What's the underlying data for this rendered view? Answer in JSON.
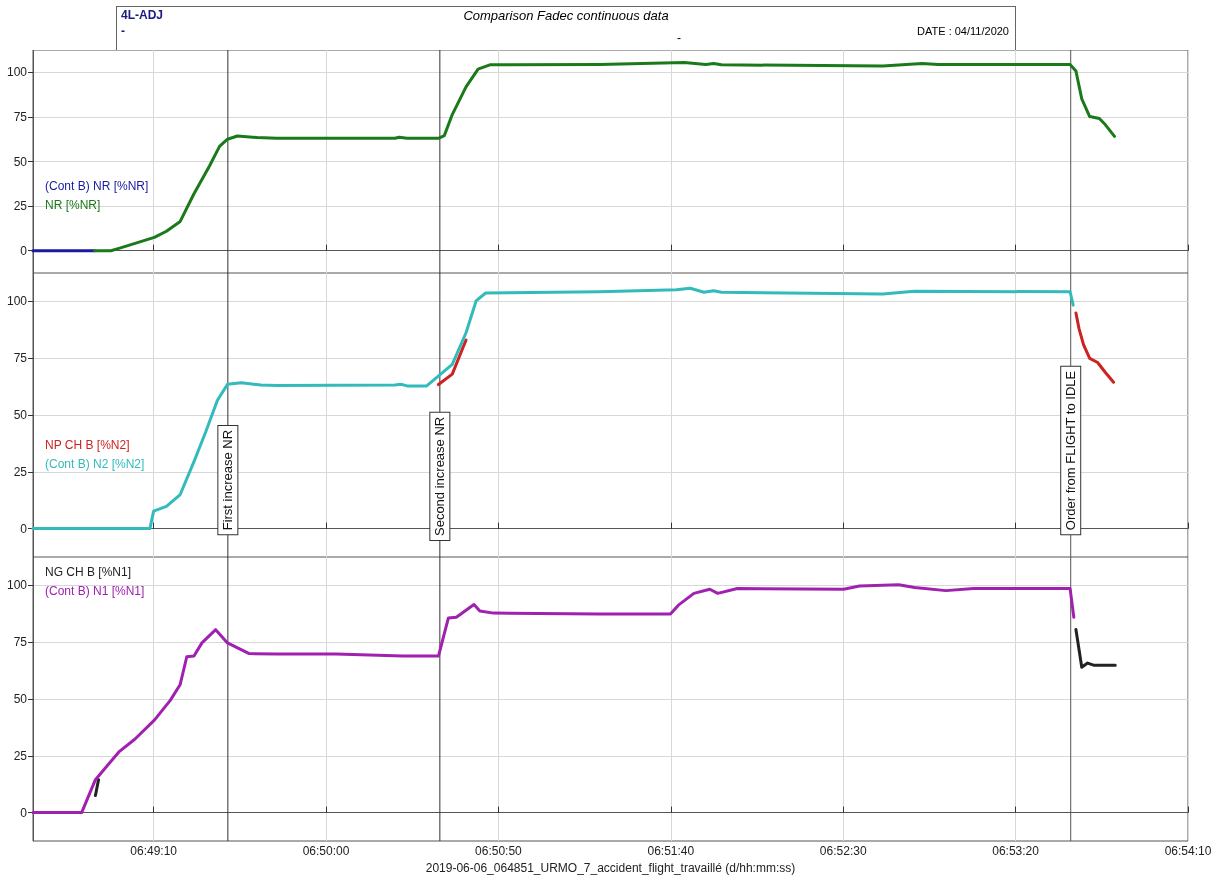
{
  "chart_data": [
    {
      "type": "line",
      "title": "Comparison Fadec continuous data",
      "annotations": [
        "4L-ADJ",
        "-",
        "-",
        "DATE : 04/11/2020"
      ],
      "xlim": [
        6.80972,
        6.90278
      ],
      "xticks": [
        {
          "value": 6.81944,
          "label": null
        },
        {
          "value": 6.83333,
          "label": null
        },
        {
          "value": 6.84722,
          "label": null
        },
        {
          "value": 6.86111,
          "label": null
        },
        {
          "value": 6.875,
          "label": null
        },
        {
          "value": 6.88889,
          "label": null
        },
        {
          "value": 6.90278,
          "label": null
        }
      ],
      "ylim": [
        -12.5,
        112.5
      ],
      "yticks": [
        0,
        25,
        50,
        75,
        100
      ],
      "grid": true,
      "legend": "left",
      "marker": "none",
      "line_style": "solid",
      "tick_labels": "y",
      "ref_lines": [
        {
          "axis": "x",
          "value": 6.82542,
          "color": "#333333"
        },
        {
          "axis": "x",
          "value": 6.8425,
          "color": "#333333"
        },
        {
          "axis": "x",
          "value": 6.89333,
          "color": "#555555"
        }
      ],
      "series": [
        {
          "name": "(Cont B) NR [%NR]",
          "color": "#1a1aa0",
          "x": [
            6.80972,
            6.81467
          ],
          "values": [
            0,
            0
          ]
        },
        {
          "name": "NR [%NR]",
          "color": "#1a7a1a",
          "x": [
            6.81467,
            6.816,
            6.81664,
            6.8195,
            6.82047,
            6.82158,
            6.82269,
            6.82394,
            6.82475,
            6.82539,
            6.82619,
            6.82778,
            6.82936,
            6.83889,
            6.83922,
            6.83986,
            6.84239,
            6.84286,
            6.8435,
            6.84461,
            6.84558,
            6.84653,
            6.85536,
            6.86219,
            6.86394,
            6.86456,
            6.86519,
            6.87819,
            6.88136,
            6.88264,
            6.89328,
            6.89375,
            6.89422,
            6.89486,
            6.89564,
            6.89611,
            6.89686
          ],
          "values": [
            0,
            0,
            1.3,
            7.5,
            10.9,
            16.4,
            31.9,
            47.5,
            58.5,
            62.5,
            64.3,
            63.4,
            63,
            63,
            63.6,
            63,
            63,
            64.5,
            76.3,
            91.8,
            101.8,
            104.2,
            104.4,
            105.5,
            104.4,
            104.9,
            104.2,
            103.5,
            104.9,
            104.4,
            104.4,
            100.7,
            85.1,
            75.2,
            74.1,
            70.7,
            64.1
          ]
        }
      ]
    },
    {
      "type": "line",
      "xlim": [
        6.80972,
        6.90278
      ],
      "xticks": [
        {
          "value": 6.81944,
          "label": null
        },
        {
          "value": 6.83333,
          "label": null
        },
        {
          "value": 6.84722,
          "label": null
        },
        {
          "value": 6.86111,
          "label": null
        },
        {
          "value": 6.875,
          "label": null
        },
        {
          "value": 6.88889,
          "label": null
        },
        {
          "value": 6.90278,
          "label": null
        }
      ],
      "ylim": [
        -12.5,
        112.5
      ],
      "yticks": [
        0,
        25,
        50,
        75,
        100
      ],
      "grid": true,
      "legend": "left",
      "marker": "none",
      "line_style": "solid",
      "tick_labels": "y",
      "ref_lines": [
        {
          "axis": "x",
          "value": 6.82542,
          "label": "First increase NR",
          "color": "#333333"
        },
        {
          "axis": "x",
          "value": 6.8425,
          "label": "Second increase NR",
          "color": "#333333"
        },
        {
          "axis": "x",
          "value": 6.89333,
          "label": "Order from FLIGHT to IDLE",
          "color": "#555555"
        }
      ],
      "series": [
        {
          "name": "NP CH B [%N2]",
          "color": "#cc2222",
          "x": [
            6.84239,
            6.8435,
            6.84461,
            6.84542,
            6.89375,
            6.894,
            6.89436,
            6.89486,
            6.8955,
            6.89611,
            6.89678
          ],
          "values": [
            63.4,
            68,
            83,
            null,
            94.9,
            88,
            81,
            74.9,
            73.1,
            68.8,
            64.4
          ]
        },
        {
          "name": "(Cont B) N2 [%N2]",
          "color": "#33bbbb",
          "x": [
            6.80972,
            6.81914,
            6.81944,
            6.82047,
            6.82158,
            6.82269,
            6.82364,
            6.82458,
            6.82539,
            6.8265,
            6.82808,
            6.82936,
            6.83889,
            6.83936,
            6.83986,
            6.84144,
            6.8435,
            6.84461,
            6.84542,
            6.84619,
            6.85536,
            6.86156,
            6.86267,
            6.86378,
            6.86456,
            6.86519,
            6.87819,
            6.88072,
            6.89328,
            6.89353
          ],
          "values": [
            0,
            0,
            7.7,
            9.8,
            15,
            29.5,
            42.6,
            56.5,
            63.5,
            64.2,
            63.2,
            63,
            63.2,
            63.5,
            62.8,
            62.8,
            72.3,
            86.2,
            100.2,
            103.7,
            104.2,
            105.1,
            105.8,
            104,
            104.7,
            104,
            103.3,
            104.5,
            104.2,
            98.4
          ]
        }
      ]
    },
    {
      "type": "line",
      "xlabel": "2019-06-06_064851_URMO_7_accident_flight_travaillé (d/hh:mm:ss)",
      "xlim": [
        6.80972,
        6.90278
      ],
      "xticks": [
        {
          "value": 6.81944,
          "label": "06:49:10"
        },
        {
          "value": 6.83333,
          "label": "06:50:00"
        },
        {
          "value": 6.84722,
          "label": "06:50:50"
        },
        {
          "value": 6.86111,
          "label": "06:51:40"
        },
        {
          "value": 6.875,
          "label": "06:52:30"
        },
        {
          "value": 6.88889,
          "label": "06:53:20"
        },
        {
          "value": 6.90278,
          "label": "06:54:10"
        }
      ],
      "ylim": [
        -12.5,
        112.5
      ],
      "yticks": [
        0,
        25,
        50,
        75,
        100
      ],
      "grid": true,
      "legend": "top left",
      "marker": "none",
      "line_style": "solid",
      "ref_lines": [
        {
          "axis": "x",
          "value": 6.82542,
          "color": "#333333"
        },
        {
          "axis": "x",
          "value": 6.8425,
          "color": "#333333"
        },
        {
          "axis": "x",
          "value": 6.89333,
          "color": "#555555"
        }
      ],
      "series": [
        {
          "name": "NG CH B [%N1]",
          "color": "#222222",
          "x": [
            6.81475,
            6.815,
            6.81664,
            6.89375,
            6.89422,
            6.89469,
            6.89517,
            6.89692
          ],
          "values": [
            7.5,
            14.5,
            null,
            80.6,
            64,
            65.8,
            64.9,
            64.9
          ]
        },
        {
          "name": "(Cont B) N1 [%N1]",
          "color": "#a020b0",
          "x": [
            6.80972,
            6.81364,
            6.81475,
            6.81664,
            6.81792,
            6.8195,
            6.82078,
            6.82158,
            6.82211,
            6.82269,
            6.82333,
            6.82444,
            6.82539,
            6.82714,
            6.82936,
            6.83411,
            6.83953,
            6.84239,
            6.84319,
            6.84383,
            6.84525,
            6.84572,
            6.84683,
            6.85536,
            6.86108,
            6.86172,
            6.86297,
            6.86425,
            6.86489,
            6.86647,
            6.87503,
            6.87631,
            6.87947,
            6.88075,
            6.88328,
            6.8855,
            6.89328,
            6.89358
          ],
          "values": [
            0,
            0,
            14.5,
            26.7,
            32.3,
            40.7,
            49.4,
            56.4,
            68.6,
            68.9,
            74.7,
            80.5,
            74.7,
            70,
            69.8,
            69.8,
            68.9,
            68.9,
            85.7,
            86,
            91.6,
            88.7,
            87.8,
            87.4,
            87.4,
            91.3,
            96.5,
            98.3,
            96.5,
            98.6,
            98.3,
            99.7,
            100.3,
            99.1,
            97.7,
            98.6,
            98.6,
            86
          ]
        }
      ]
    }
  ]
}
